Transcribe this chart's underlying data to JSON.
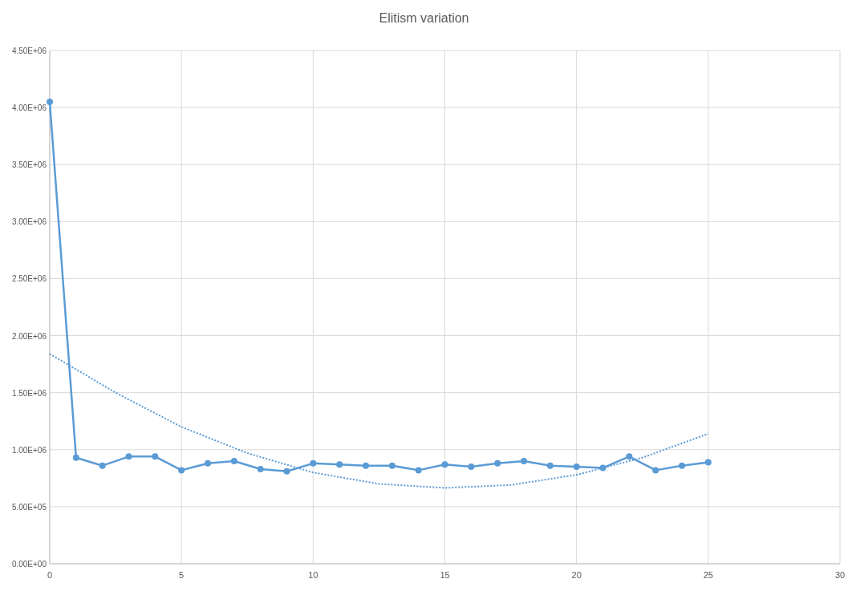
{
  "chart_data": {
    "type": "line",
    "title": "Elitism variation",
    "xlim": [
      0,
      30
    ],
    "xticks": [
      0,
      5,
      10,
      15,
      20,
      25,
      30
    ],
    "ylim": [
      0,
      4500000
    ],
    "yticks": [
      {
        "value": 0,
        "label": "0.00E+00"
      },
      {
        "value": 500000,
        "label": "5.00E+05"
      },
      {
        "value": 1000000,
        "label": "1.00E+06"
      },
      {
        "value": 1500000,
        "label": "1.50E+06"
      },
      {
        "value": 2000000,
        "label": "2.00E+06"
      },
      {
        "value": 2500000,
        "label": "2.50E+06"
      },
      {
        "value": 3000000,
        "label": "3.00E+06"
      },
      {
        "value": 3500000,
        "label": "3.50E+06"
      },
      {
        "value": 4000000,
        "label": "4.00E+06"
      },
      {
        "value": 4500000,
        "label": "4.50E+06"
      }
    ],
    "grid": true,
    "series": [
      {
        "color": "#5b9bd5",
        "marker": "circle",
        "line_style": "solid",
        "x": [
          0,
          1,
          2,
          3,
          4,
          5,
          6,
          7,
          8,
          9,
          10,
          11,
          12,
          13,
          14,
          15,
          16,
          17,
          18,
          19,
          20,
          21,
          22,
          23,
          24,
          25
        ],
        "values": [
          4050000,
          930000,
          860000,
          940000,
          940000,
          820000,
          880000,
          900000,
          830000,
          810000,
          880000,
          870000,
          860000,
          860000,
          820000,
          870000,
          850000,
          880000,
          900000,
          860000,
          850000,
          840000,
          940000,
          820000,
          860000,
          890000
        ]
      },
      {
        "color": "#5b9bd5",
        "marker": "none",
        "line_style": "dotted",
        "x": [
          0,
          2.5,
          5,
          7.5,
          10,
          12.5,
          15,
          17.5,
          20,
          22.5,
          25
        ],
        "values": [
          1840000,
          1500000,
          1200000,
          970000,
          800000,
          700000,
          665000,
          690000,
          780000,
          930000,
          1140000
        ]
      }
    ]
  }
}
